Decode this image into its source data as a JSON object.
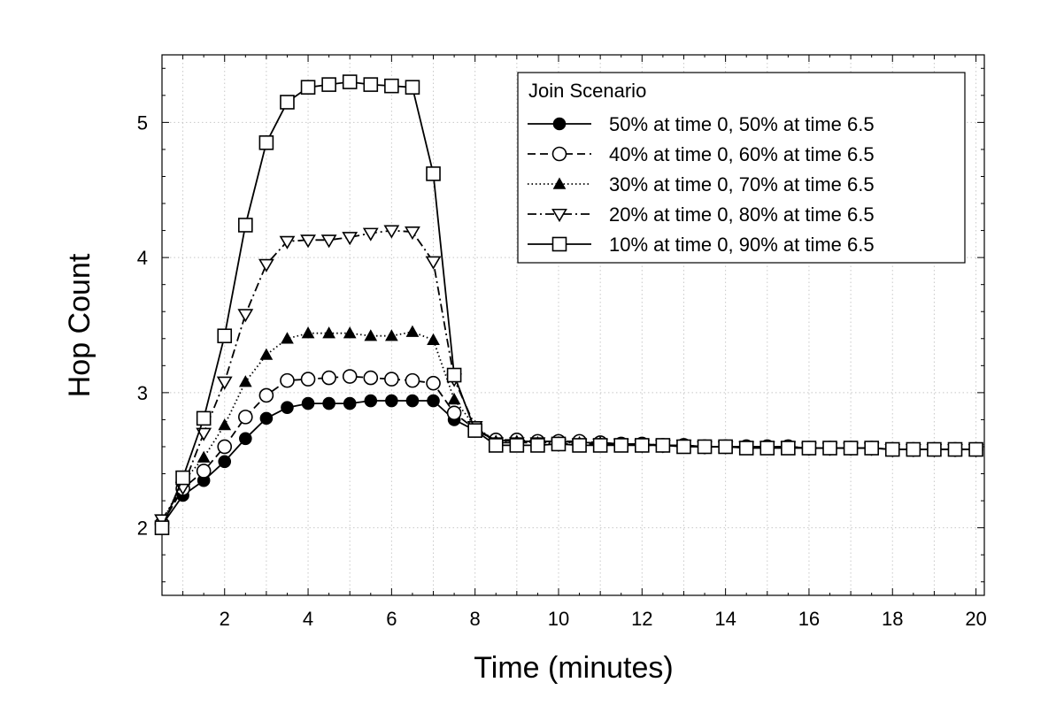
{
  "chart_data": {
    "type": "line",
    "title": "",
    "xlabel": "Time (minutes)",
    "ylabel": "Hop Count",
    "xlim": [
      0.5,
      20.2
    ],
    "ylim": [
      1.5,
      5.5
    ],
    "xticks": [
      2,
      4,
      6,
      8,
      10,
      12,
      14,
      16,
      18,
      20
    ],
    "yticks": [
      2,
      3,
      4,
      5
    ],
    "grid": true,
    "legend_position": "top-right",
    "legend_title": "Join Scenario",
    "x": [
      0.5,
      1,
      1.5,
      2,
      2.5,
      3,
      3.5,
      4,
      4.5,
      5,
      5.5,
      6,
      6.5,
      7,
      7.5,
      8,
      8.5,
      9,
      9.5,
      10,
      10.5,
      11,
      11.5,
      12,
      12.5,
      13,
      13.5,
      14,
      14.5,
      15,
      15.5,
      16,
      16.5,
      17,
      17.5,
      18,
      18.5,
      19,
      19.5,
      20
    ],
    "series": [
      {
        "name": "50% at time 0, 50% at time 6.5",
        "marker": "filled-circle",
        "dash": "solid",
        "values": [
          2.02,
          2.24,
          2.35,
          2.49,
          2.66,
          2.81,
          2.89,
          2.92,
          2.92,
          2.92,
          2.94,
          2.94,
          2.94,
          2.94,
          2.8,
          2.72,
          2.65,
          2.64,
          2.64,
          2.64,
          2.63,
          2.63,
          2.62,
          2.62,
          2.61,
          2.61,
          2.6,
          2.6,
          2.6,
          2.6,
          2.6,
          2.59,
          2.59,
          2.59,
          2.59,
          2.58,
          2.58,
          2.58,
          2.58,
          2.58
        ]
      },
      {
        "name": "40% at time 0, 60% at time 6.5",
        "marker": "open-circle",
        "dash": "dashed",
        "values": [
          2.03,
          2.29,
          2.42,
          2.6,
          2.82,
          2.98,
          3.09,
          3.1,
          3.11,
          3.12,
          3.11,
          3.1,
          3.09,
          3.07,
          2.85,
          2.73,
          2.65,
          2.65,
          2.64,
          2.64,
          2.64,
          2.63,
          2.62,
          2.62,
          2.61,
          2.61,
          2.6,
          2.6,
          2.6,
          2.6,
          2.6,
          2.59,
          2.59,
          2.59,
          2.59,
          2.58,
          2.58,
          2.58,
          2.58,
          2.58
        ]
      },
      {
        "name": "30% at time 0, 70% at time 6.5",
        "marker": "filled-triangle-up",
        "dash": "dotted",
        "values": [
          2.04,
          2.34,
          2.52,
          2.76,
          3.08,
          3.28,
          3.4,
          3.44,
          3.44,
          3.44,
          3.42,
          3.42,
          3.45,
          3.39,
          2.95,
          2.75,
          2.64,
          2.64,
          2.63,
          2.63,
          2.63,
          2.63,
          2.62,
          2.62,
          2.61,
          2.61,
          2.6,
          2.6,
          2.6,
          2.6,
          2.6,
          2.59,
          2.59,
          2.59,
          2.59,
          2.58,
          2.58,
          2.58,
          2.58,
          2.58
        ]
      },
      {
        "name": "20% at time 0, 80% at time 6.5",
        "marker": "open-triangle-down",
        "dash": "dashdot",
        "values": [
          2.06,
          2.3,
          2.7,
          3.08,
          3.58,
          3.95,
          4.12,
          4.13,
          4.13,
          4.15,
          4.18,
          4.2,
          4.19,
          3.97,
          3.1,
          2.75,
          2.63,
          2.63,
          2.63,
          2.62,
          2.62,
          2.62,
          2.62,
          2.61,
          2.61,
          2.61,
          2.6,
          2.6,
          2.6,
          2.6,
          2.6,
          2.59,
          2.59,
          2.59,
          2.59,
          2.58,
          2.58,
          2.58,
          2.58,
          2.58
        ]
      },
      {
        "name": "10% at time 0, 90% at time 6.5",
        "marker": "open-square",
        "dash": "solid",
        "values": [
          2.0,
          2.37,
          2.81,
          3.42,
          4.24,
          4.85,
          5.15,
          5.26,
          5.28,
          5.3,
          5.28,
          5.27,
          5.26,
          4.62,
          3.13,
          2.72,
          2.61,
          2.61,
          2.61,
          2.62,
          2.61,
          2.61,
          2.61,
          2.61,
          2.61,
          2.6,
          2.6,
          2.6,
          2.59,
          2.59,
          2.59,
          2.59,
          2.59,
          2.59,
          2.59,
          2.58,
          2.58,
          2.58,
          2.58,
          2.58
        ]
      }
    ]
  }
}
